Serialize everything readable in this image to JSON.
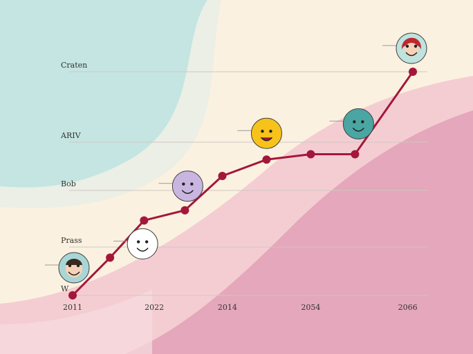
{
  "chart_data": {
    "type": "line",
    "title": "",
    "xlabel": "",
    "ylabel": "",
    "x_tick_labels": [
      "2011",
      "2022",
      "2014",
      "2054",
      "2066"
    ],
    "y_tick_labels": [
      "W",
      "Prass",
      "Bob",
      "ARIV",
      "Craten"
    ],
    "y_levels": [
      0,
      1,
      2,
      3,
      4
    ],
    "series": [
      {
        "color": "#a3173a",
        "points": [
          {
            "x": 0.0,
            "y": 0.0
          },
          {
            "x": 0.11,
            "y": 0.78
          },
          {
            "x": 0.21,
            "y": 1.47
          },
          {
            "x": 0.33,
            "y": 1.65
          },
          {
            "x": 0.44,
            "y": 2.3
          },
          {
            "x": 0.57,
            "y": 2.64
          },
          {
            "x": 0.7,
            "y": 2.75
          },
          {
            "x": 0.83,
            "y": 2.75
          },
          {
            "x": 1.0,
            "y": 4.0
          }
        ]
      }
    ],
    "ylim": [
      0,
      4
    ],
    "xlim": [
      0,
      1
    ],
    "grid": true,
    "icons": [
      {
        "name": "man-face-icon",
        "point_index": 0
      },
      {
        "name": "grinning-face-icon",
        "point_index": 1
      },
      {
        "name": "purple-smiley-icon",
        "point_index": 3
      },
      {
        "name": "laughing-emoji-icon",
        "point_index": 5
      },
      {
        "name": "teal-face-icon",
        "point_index": 7
      },
      {
        "name": "red-hair-woman-icon",
        "point_index": 8
      }
    ]
  },
  "colors": {
    "background": "#fbf1e0",
    "teal": "#bfe3df",
    "pink_light": "#f3c9cf",
    "pink_dark": "#e3a4b9",
    "line": "#a3173a",
    "grid": "#cfc7c2"
  }
}
